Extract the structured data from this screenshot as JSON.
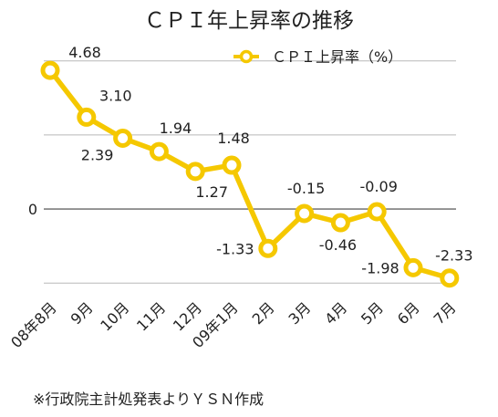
{
  "chart_data": {
    "type": "line",
    "title": "ＣＰＩ年上昇率の推移",
    "xlabel": "",
    "ylabel": "",
    "categories": [
      "08年8月",
      "9月",
      "10月",
      "11月",
      "12月",
      "09年1月",
      "2月",
      "3月",
      "4月",
      "5月",
      "6月",
      "7月"
    ],
    "series": [
      {
        "name": "ＣＰＩ上昇率（%）",
        "values": [
          4.68,
          3.1,
          2.39,
          1.94,
          1.27,
          1.48,
          -1.33,
          -0.15,
          -0.46,
          -0.09,
          -1.98,
          -2.33
        ],
        "color": "#f5c800"
      }
    ],
    "data_labels": [
      "4.68",
      "3.10",
      "2.39",
      "1.94",
      "1.27",
      "1.48",
      "-1.33",
      "-0.15",
      "-0.46",
      "-0.09",
      "-1.98",
      "-2.33"
    ],
    "ylim": [
      -2.8,
      5.7
    ],
    "y_tick_labels": [
      "0"
    ],
    "grid": true,
    "legend_position": "top-right"
  },
  "footer": {
    "source_note": "※行政院主計処発表よりＹＳＮ作成"
  }
}
